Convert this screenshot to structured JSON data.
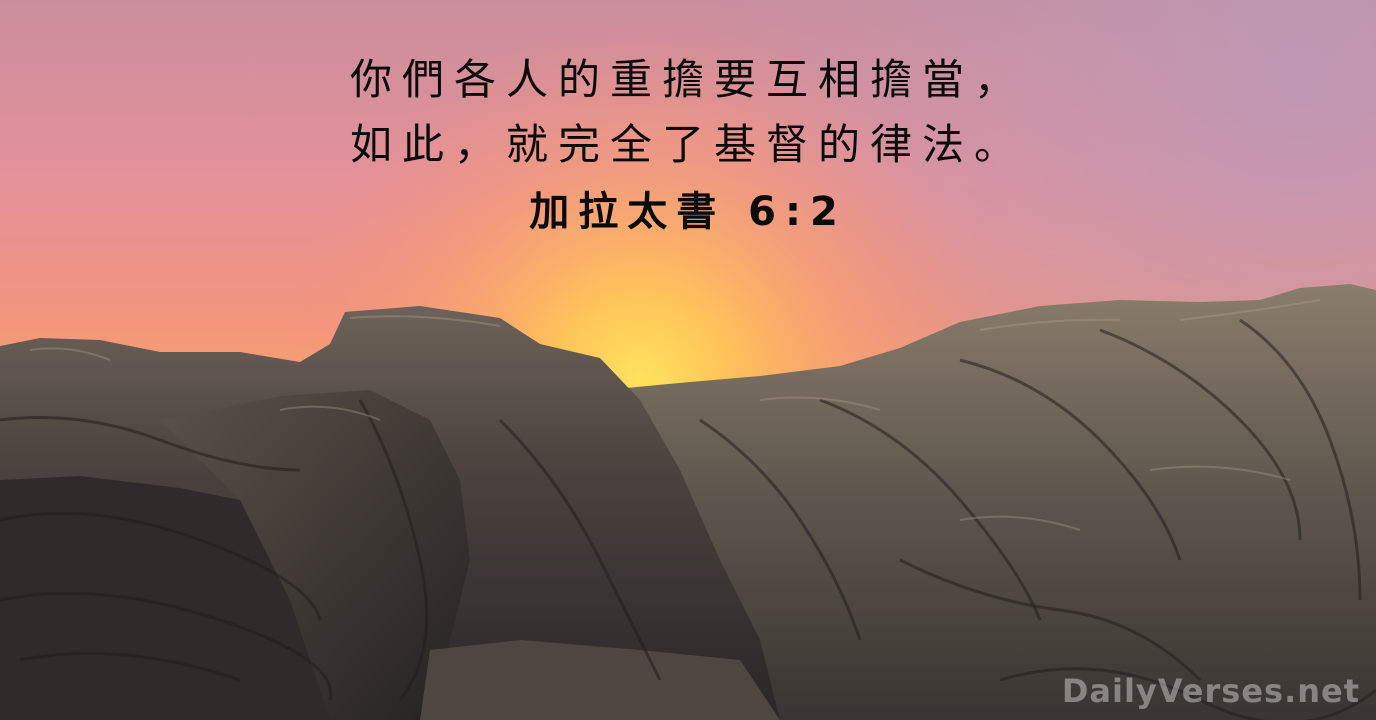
{
  "verse": {
    "line1": "你們各人的重擔要互相擔當，",
    "line2": "如此，就完全了基督的律法。",
    "reference": "加拉太書 6:2"
  },
  "watermark": "DailyVerses.net",
  "colors": {
    "sky_top": "#c98e9c",
    "sky_mid": "#f0907a",
    "sky_glow": "#ffd560",
    "rock_dark": "#3b3532",
    "rock_light": "#7e7365",
    "text": "#0b0b0b"
  }
}
